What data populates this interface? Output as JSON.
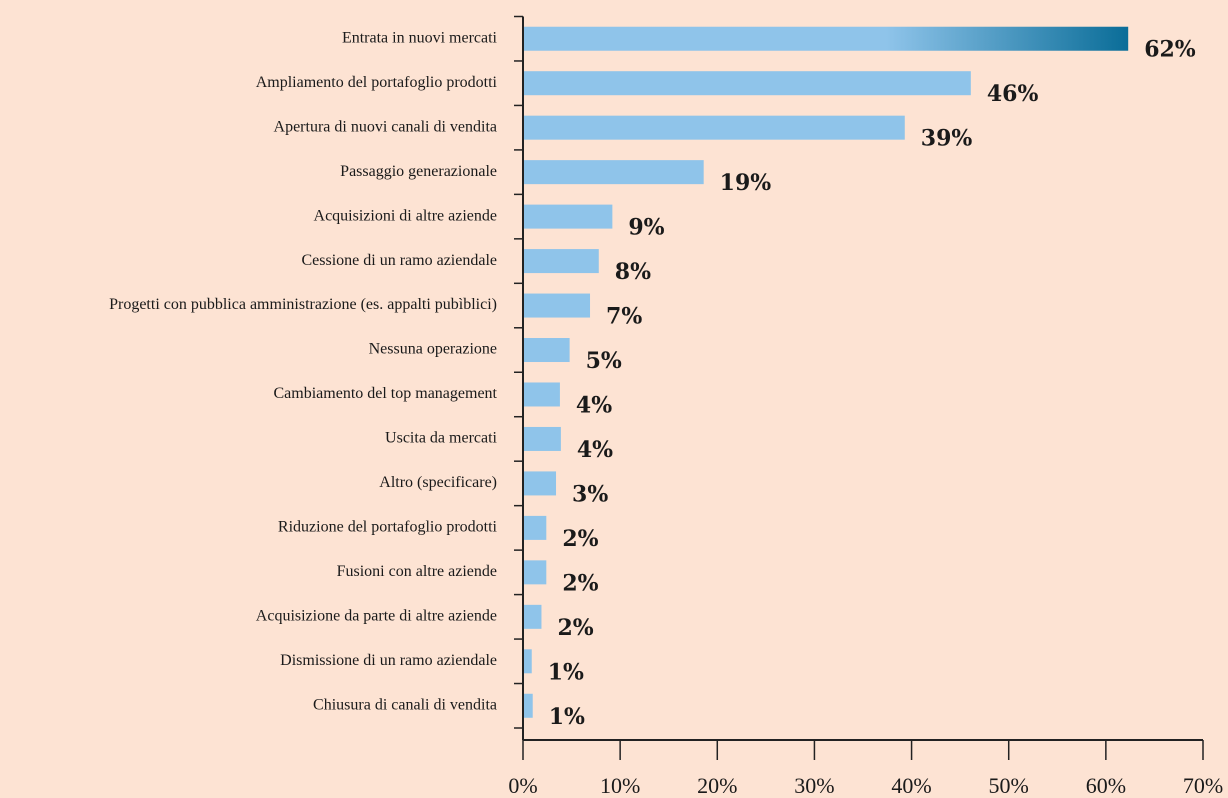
{
  "chart_data": {
    "type": "barh",
    "categories": [
      "Entrata in nuovi mercati",
      "Ampliamento del portafoglio prodotti",
      "Apertura di nuovi canali di vendita",
      "Passaggio generazionale",
      "Acquisizioni di altre aziende",
      "Cessione di un ramo aziendale",
      "Progetti con pubblica amministrazione (es. appalti pubìblici)",
      "Nessuna operazione",
      "Cambiamento del top management",
      "Uscita da mercati",
      "Altro (specificare)",
      "Riduzione del portafoglio prodotti",
      "Fusioni con altre aziende",
      "Acquisizione da parte di altre aziende",
      "Dismissione di un ramo aziendale",
      "Chiusura di canali di vendita"
    ],
    "values": [
      62.3,
      46.1,
      39.3,
      18.6,
      9.2,
      7.8,
      6.9,
      4.8,
      3.8,
      3.9,
      3.4,
      2.4,
      2.4,
      1.9,
      0.9,
      1.0
    ],
    "value_labels": [
      "62%",
      "46%",
      "39%",
      "19%",
      "9%",
      "8%",
      "7%",
      "5%",
      "4%",
      "4%",
      "3%",
      "2%",
      "2%",
      "2%",
      "1%",
      "1%"
    ],
    "color": "#8fc4ea",
    "gradient_end_color": "#0a6d98",
    "xlim": [
      0,
      70
    ],
    "xticks": [
      {
        "value": 0,
        "label": "0%"
      },
      {
        "value": 10,
        "label": "10%"
      },
      {
        "value": 20,
        "label": "20%"
      },
      {
        "value": 30,
        "label": "30%"
      },
      {
        "value": 40,
        "label": "40%"
      },
      {
        "value": 50,
        "label": "50%"
      },
      {
        "value": 60,
        "label": "60%"
      },
      {
        "value": 70,
        "label": "70%"
      }
    ]
  }
}
